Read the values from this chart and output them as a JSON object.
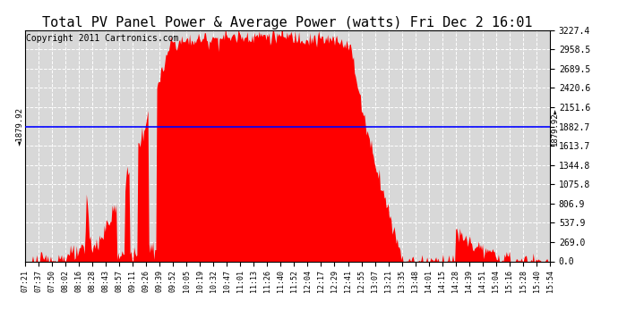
{
  "title": "Total PV Panel Power & Average Power (watts) Fri Dec 2 16:01",
  "copyright": "Copyright 2011 Cartronics.com",
  "average_power": 1879.92,
  "ymax": 3227.4,
  "ymin": 0.0,
  "yticks": [
    0.0,
    269.0,
    537.9,
    806.9,
    1075.8,
    1344.8,
    1613.7,
    1882.7,
    2151.6,
    2420.6,
    2689.5,
    2958.5,
    3227.4
  ],
  "xtick_labels": [
    "07:21",
    "07:37",
    "07:50",
    "08:02",
    "08:16",
    "08:28",
    "08:43",
    "08:57",
    "09:11",
    "09:26",
    "09:39",
    "09:52",
    "10:05",
    "10:19",
    "10:32",
    "10:47",
    "11:01",
    "11:13",
    "11:26",
    "11:40",
    "11:52",
    "12:04",
    "12:17",
    "12:29",
    "12:41",
    "12:55",
    "13:07",
    "13:21",
    "13:35",
    "13:48",
    "14:01",
    "14:15",
    "14:28",
    "14:39",
    "14:51",
    "15:04",
    "15:16",
    "15:28",
    "15:40",
    "15:54"
  ],
  "bar_color": "#FF0000",
  "line_color": "#0000FF",
  "bg_color": "#FFFFFF",
  "plot_bg_color": "#D8D8D8",
  "grid_color": "#FFFFFF",
  "title_fontsize": 11,
  "copyright_fontsize": 7,
  "tick_fontsize": 7
}
